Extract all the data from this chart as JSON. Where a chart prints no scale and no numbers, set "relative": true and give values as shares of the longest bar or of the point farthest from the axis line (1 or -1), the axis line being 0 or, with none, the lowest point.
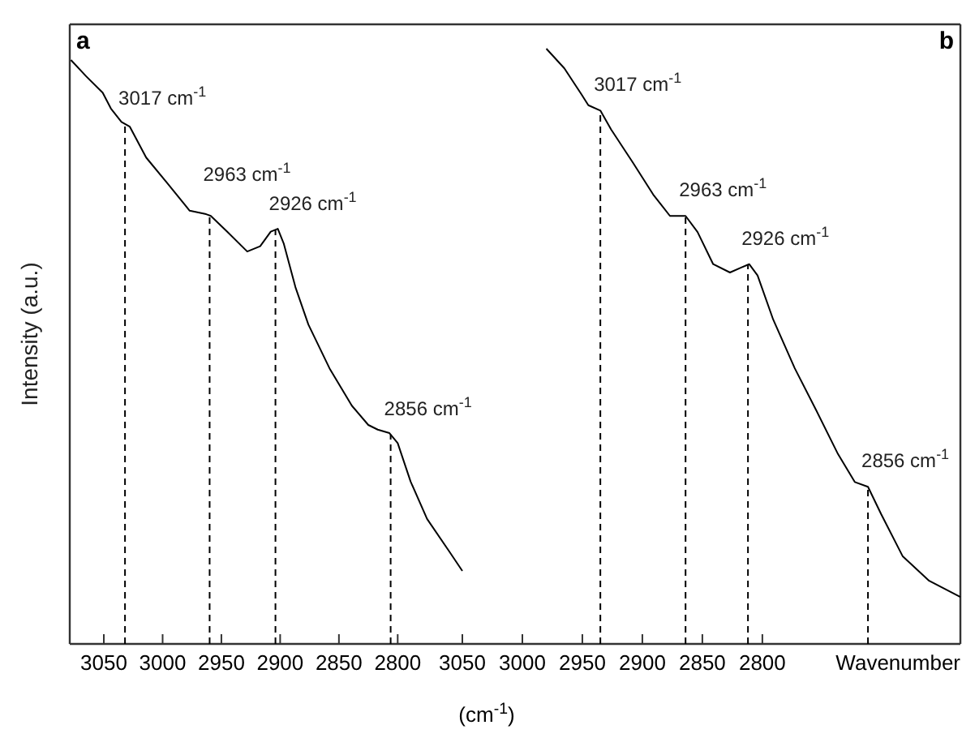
{
  "chart_data": [
    {
      "type": "line",
      "ylabel": "Intensity (a.u.)",
      "relative": true,
      "x": [
        3078,
        3065,
        3051,
        3044,
        3035,
        3028,
        3014,
        2996,
        2977,
        2963,
        2959,
        2945,
        2928,
        2917,
        2908,
        2902,
        2897,
        2887,
        2876,
        2858,
        2839,
        2825,
        2817,
        2807,
        2800,
        2789,
        2775,
        2756,
        2745
      ],
      "series": [
        {
          "color": "#000000",
          "values": [
            1.0,
            0.972,
            0.944,
            0.917,
            0.894,
            0.886,
            0.833,
            0.789,
            0.742,
            0.736,
            0.733,
            0.706,
            0.672,
            0.681,
            0.706,
            0.711,
            0.686,
            0.611,
            0.547,
            0.472,
            0.408,
            0.375,
            0.367,
            0.361,
            0.344,
            0.278,
            0.214,
            0.158,
            0.125
          ]
        }
      ],
      "xlim": [
        3079,
        2745
      ],
      "xticks": [
        3050,
        3000,
        2950,
        2900,
        2850,
        2800
      ],
      "ref_lines": [
        {
          "axis": "x",
          "value": 3032,
          "label": "3017 cm$^{-1}$",
          "line_style": "dashed"
        },
        {
          "axis": "x",
          "value": 2960,
          "label": "2963 cm$^{-1}$",
          "line_style": "dashed"
        },
        {
          "axis": "x",
          "value": 2904,
          "label": "2926 cm$^{-1}$",
          "line_style": "dashed"
        },
        {
          "axis": "x",
          "value": 2806,
          "label": "2856 cm$^{-1}$",
          "line_style": "dashed"
        }
      ],
      "annotations": [
        "a"
      ],
      "grid": false,
      "line_style": "solid",
      "marker": "none",
      "tick_labels": "x"
    },
    {
      "type": "line",
      "xlabel": "Wavenumber",
      "relative": true,
      "x": [
        2980,
        2965,
        2951,
        2945,
        2935,
        2926,
        2908,
        2891,
        2877,
        2864,
        2854,
        2841,
        2827,
        2818,
        2811,
        2804,
        2791,
        2773,
        2755,
        2737,
        2723,
        2712,
        2701,
        2683,
        2661,
        2635
      ],
      "series": [
        {
          "color": "#000000",
          "values": [
            1.0,
            0.967,
            0.924,
            0.905,
            0.896,
            0.864,
            0.809,
            0.755,
            0.719,
            0.719,
            0.692,
            0.638,
            0.624,
            0.632,
            0.638,
            0.619,
            0.545,
            0.463,
            0.392,
            0.319,
            0.272,
            0.264,
            0.218,
            0.147,
            0.106,
            0.079
          ]
        }
      ],
      "xlim": [
        3050,
        2635
      ],
      "xticks": [
        3050,
        3000,
        2950,
        2900,
        2850,
        2800
      ],
      "ref_lines": [
        {
          "axis": "x",
          "value": 2935,
          "label": "3017 cm$^{-1}$",
          "line_style": "dashed"
        },
        {
          "axis": "x",
          "value": 2864,
          "label": "2963 cm$^{-1}$",
          "line_style": "dashed"
        },
        {
          "axis": "x",
          "value": 2812,
          "label": "2926 cm$^{-1}$",
          "line_style": "dashed"
        },
        {
          "axis": "x",
          "value": 2712,
          "label": "2856 cm$^{-1}$",
          "line_style": "dashed"
        }
      ],
      "annotations": [
        "b",
        "(cm$^{-1}$)"
      ],
      "grid": false,
      "line_style": "solid",
      "marker": "none",
      "tick_labels": "x"
    }
  ]
}
